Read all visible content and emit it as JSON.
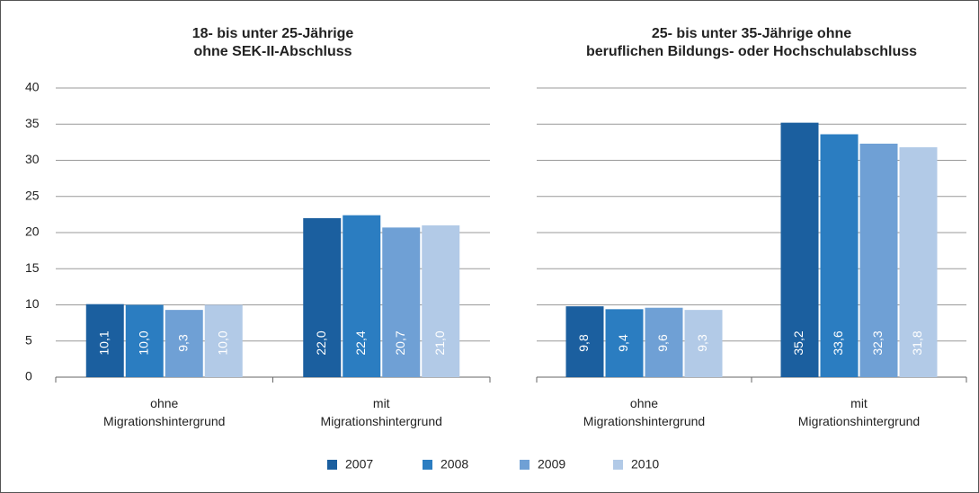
{
  "chart_data": [
    {
      "type": "bar",
      "title": "18- bis unter 25-Jährige\nohne SEK-II-Abschluss",
      "categories": [
        "ohne\nMigrationshintergrund",
        "mit\nMigrationshintergrund"
      ],
      "series": [
        {
          "name": "2007",
          "color": "#1b5f9f",
          "values": [
            10.1,
            22.0
          ],
          "value_labels": [
            "10,1",
            "22,0"
          ]
        },
        {
          "name": "2008",
          "color": "#2b7dc1",
          "values": [
            10.0,
            22.4
          ],
          "value_labels": [
            "10,0",
            "22,4"
          ]
        },
        {
          "name": "2009",
          "color": "#6fa0d5",
          "values": [
            9.3,
            20.7
          ],
          "value_labels": [
            "9,3",
            "20,7"
          ]
        },
        {
          "name": "2010",
          "color": "#b2cae7",
          "values": [
            10.0,
            21.0
          ],
          "value_labels": [
            "10,0",
            "21,0"
          ]
        }
      ],
      "ylim": [
        0,
        40
      ],
      "yticks": [
        0,
        5,
        10,
        15,
        20,
        25,
        30,
        35,
        40
      ],
      "grid": true,
      "legend": "bottom"
    },
    {
      "type": "bar",
      "title": "25- bis unter 35-Jährige ohne\nberuflichen Bildungs- oder Hochschulabschluss",
      "categories": [
        "ohne\nMigrationshintergrund",
        "mit\nMigrationshintergrund"
      ],
      "series": [
        {
          "name": "2007",
          "color": "#1b5f9f",
          "values": [
            9.8,
            35.2
          ],
          "value_labels": [
            "9,8",
            "35,2"
          ]
        },
        {
          "name": "2008",
          "color": "#2b7dc1",
          "values": [
            9.4,
            33.6
          ],
          "value_labels": [
            "9,4",
            "33,6"
          ]
        },
        {
          "name": "2009",
          "color": "#6fa0d5",
          "values": [
            9.6,
            32.3
          ],
          "value_labels": [
            "9,6",
            "32,3"
          ]
        },
        {
          "name": "2010",
          "color": "#b2cae7",
          "values": [
            9.3,
            31.8
          ],
          "value_labels": [
            "9,3",
            "31,8"
          ]
        }
      ],
      "ylim": [
        0,
        40
      ],
      "yticks": [
        0,
        5,
        10,
        15,
        20,
        25,
        30,
        35,
        40
      ],
      "grid": true
    }
  ]
}
